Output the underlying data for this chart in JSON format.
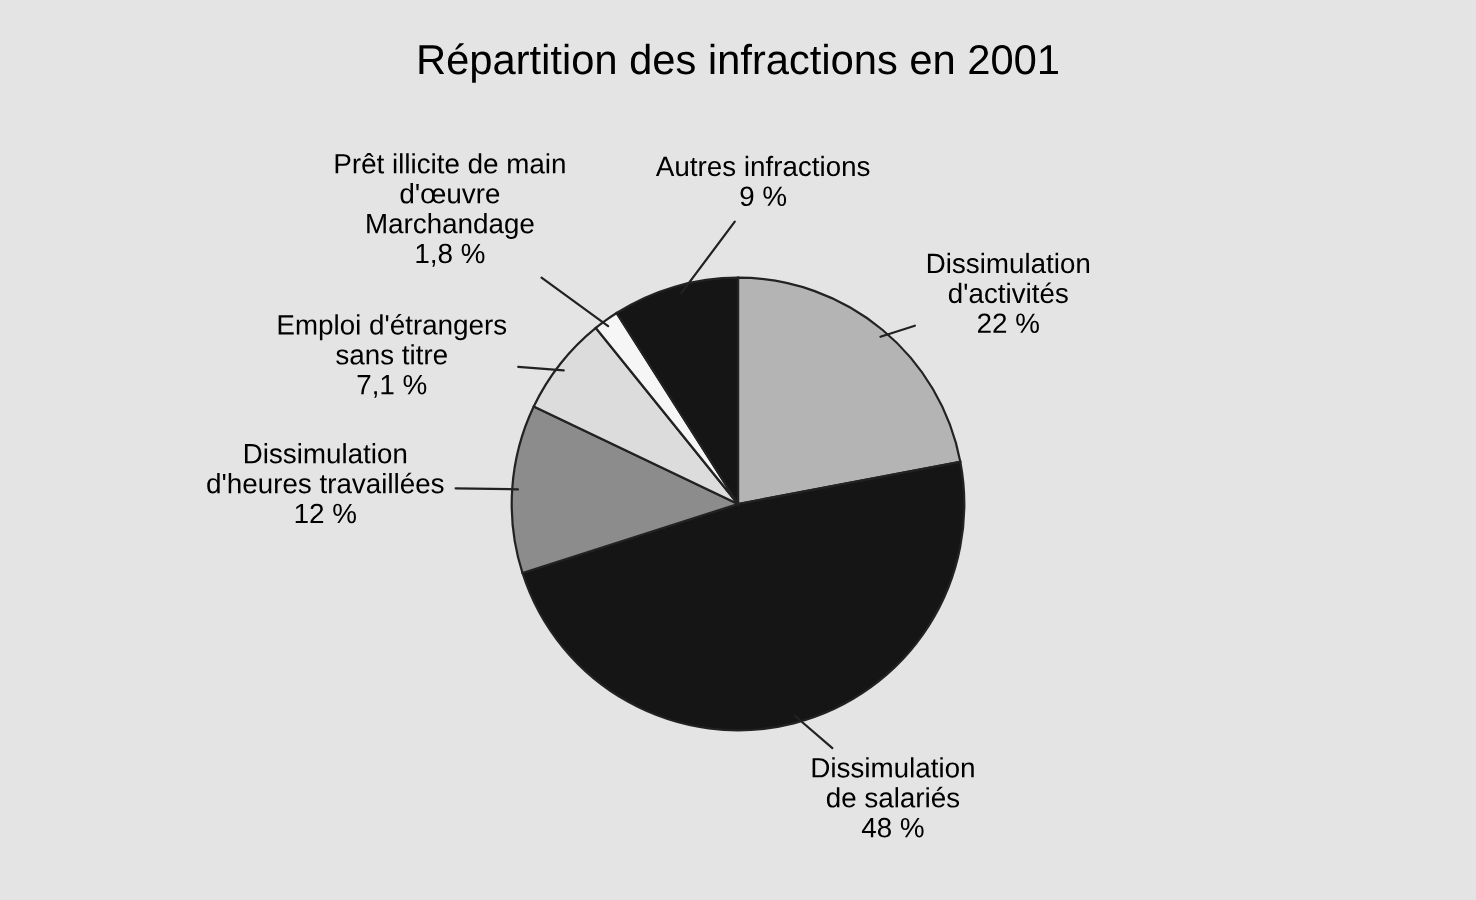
{
  "chart_data": {
    "type": "pie",
    "title": "Répartition des infractions en 2001",
    "categories": [
      "Dissimulation\nd'activités",
      "Dissimulation\nde salariés",
      "Dissimulation\nd'heures travaillées",
      "Emploi d'étrangers\nsans titre",
      "Prêt illicite de main\nd'œuvre\nMarchandage",
      "Autres infractions"
    ],
    "values": [
      22,
      48,
      12,
      7.1,
      1.8,
      9
    ],
    "value_labels": [
      "22 %",
      "48 %",
      "12 %",
      "7,1 %",
      "1,8 %",
      "9 %"
    ],
    "colors": [
      "#b4b4b4",
      "#151515",
      "#8c8c8c",
      "#dcdcdc",
      "#f6f6f6",
      "#151515"
    ]
  }
}
